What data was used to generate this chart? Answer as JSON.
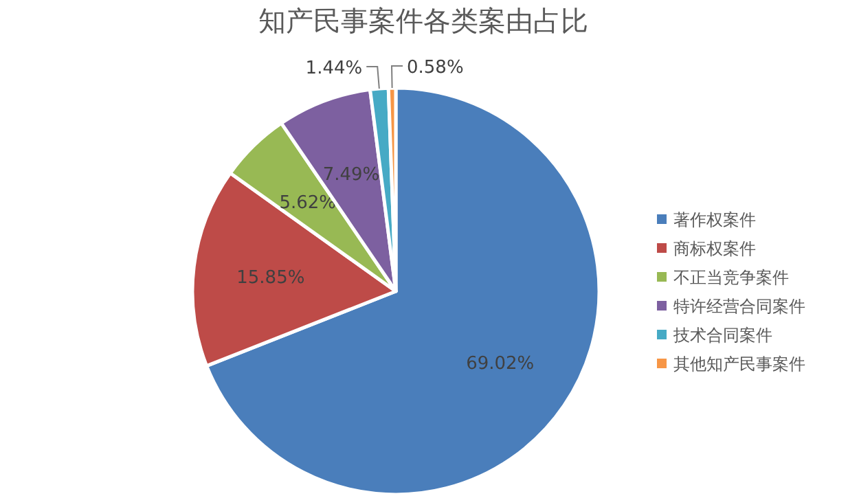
{
  "chart_data": {
    "type": "pie",
    "title": "知产民事案件各类案由占比",
    "categories": [
      "著作权案件",
      "商标权案件",
      "不正当竞争案件",
      "特许经营合同案件",
      "技术合同案件",
      "其他知产民事案件"
    ],
    "values": [
      69.02,
      15.85,
      5.62,
      7.49,
      1.44,
      0.58
    ],
    "colors": [
      "#4a7ebb",
      "#be4b48",
      "#98b954",
      "#7d60a0",
      "#46aac5",
      "#f79646"
    ],
    "value_labels": [
      "69.02%",
      "15.85%",
      "5.62%",
      "7.49%",
      "1.44%",
      "0.58%"
    ],
    "legend": "right"
  }
}
